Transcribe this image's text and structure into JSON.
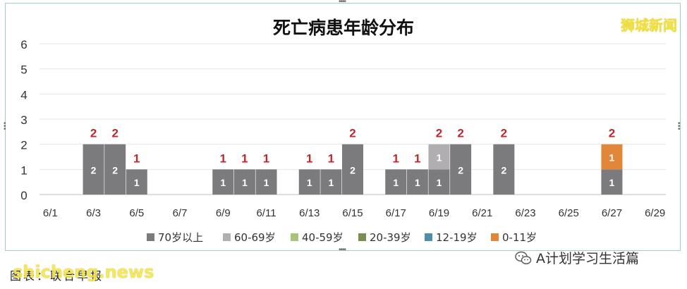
{
  "header": {
    "watermark": "狮城新闻"
  },
  "footer": {
    "source_label": "图表：联合早报",
    "watermark": "shicheng.news",
    "account_name": "A计划学习生活篇"
  },
  "chart_data": {
    "type": "bar",
    "stacked": true,
    "title": "死亡病患年龄分布",
    "xlabel": "",
    "ylabel": "",
    "ylim": [
      0,
      6
    ],
    "yticks": [
      "0",
      "1",
      "2",
      "3",
      "4",
      "5",
      "6"
    ],
    "grid": true,
    "legend_position": "bottom",
    "categories": [
      "6/1",
      "6/2",
      "6/3",
      "6/4",
      "6/5",
      "6/6",
      "6/7",
      "6/8",
      "6/9",
      "6/10",
      "6/11",
      "6/12",
      "6/13",
      "6/14",
      "6/15",
      "6/16",
      "6/17",
      "6/18",
      "6/19",
      "6/20",
      "6/21",
      "6/22",
      "6/23",
      "6/24",
      "6/25",
      "6/26",
      "6/27",
      "6/28",
      "6/29"
    ],
    "x_tick_labels": [
      "6/1",
      "6/3",
      "6/5",
      "6/7",
      "6/9",
      "6/11",
      "6/13",
      "6/15",
      "6/17",
      "6/19",
      "6/21",
      "6/23",
      "6/25",
      "6/27",
      "6/29"
    ],
    "series": [
      {
        "name": "70岁以上",
        "color": "#7b7a7d",
        "values": [
          0,
          0,
          2,
          2,
          1,
          0,
          0,
          0,
          1,
          1,
          1,
          0,
          1,
          1,
          2,
          0,
          1,
          1,
          1,
          2,
          0,
          2,
          0,
          0,
          0,
          0,
          1,
          0,
          0
        ]
      },
      {
        "name": "60-69岁",
        "color": "#b0aeb1",
        "values": [
          0,
          0,
          0,
          0,
          0,
          0,
          0,
          0,
          0,
          0,
          0,
          0,
          0,
          0,
          0,
          0,
          0,
          0,
          1,
          0,
          0,
          0,
          0,
          0,
          0,
          0,
          0,
          0,
          0
        ]
      },
      {
        "name": "40-59岁",
        "color": "#a9c47a",
        "values": [
          0,
          0,
          0,
          0,
          0,
          0,
          0,
          0,
          0,
          0,
          0,
          0,
          0,
          0,
          0,
          0,
          0,
          0,
          0,
          0,
          0,
          0,
          0,
          0,
          0,
          0,
          0,
          0,
          0
        ]
      },
      {
        "name": "20-39岁",
        "color": "#7a8f4f",
        "values": [
          0,
          0,
          0,
          0,
          0,
          0,
          0,
          0,
          0,
          0,
          0,
          0,
          0,
          0,
          0,
          0,
          0,
          0,
          0,
          0,
          0,
          0,
          0,
          0,
          0,
          0,
          0,
          0,
          0
        ]
      },
      {
        "name": "12-19岁",
        "color": "#4e8fa7",
        "values": [
          0,
          0,
          0,
          0,
          0,
          0,
          0,
          0,
          0,
          0,
          0,
          0,
          0,
          0,
          0,
          0,
          0,
          0,
          0,
          0,
          0,
          0,
          0,
          0,
          0,
          0,
          0,
          0,
          0
        ]
      },
      {
        "name": "0-11岁",
        "color": "#e1873a",
        "values": [
          0,
          0,
          0,
          0,
          0,
          0,
          0,
          0,
          0,
          0,
          0,
          0,
          0,
          0,
          0,
          0,
          0,
          0,
          0,
          0,
          0,
          0,
          0,
          0,
          0,
          0,
          1,
          0,
          0
        ]
      }
    ],
    "totals": [
      0,
      0,
      2,
      2,
      1,
      0,
      0,
      0,
      1,
      1,
      1,
      0,
      1,
      1,
      2,
      0,
      1,
      1,
      2,
      2,
      0,
      2,
      0,
      0,
      0,
      0,
      2,
      0,
      0
    ],
    "total_label_color": "#c0272d",
    "segment_label_color": "#ffffff"
  }
}
